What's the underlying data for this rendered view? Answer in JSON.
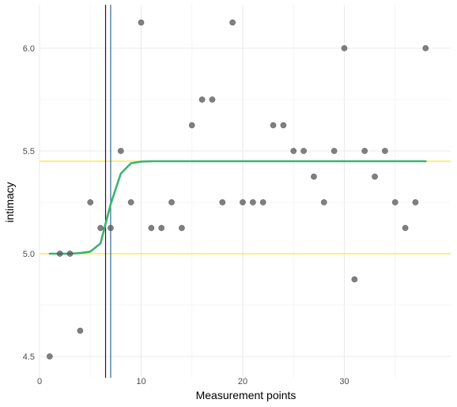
{
  "chart_data": {
    "type": "scatter",
    "xlabel": "Measurement points",
    "ylabel": "intimacy",
    "xlim": [
      0,
      38.5
    ],
    "ylim": [
      4.45,
      6.15
    ],
    "x_ticks": [
      0,
      10,
      20,
      30
    ],
    "y_ticks": [
      4.5,
      5.0,
      5.5,
      6.0
    ],
    "x_tick_labels": [
      "0",
      "10",
      "20",
      "30"
    ],
    "y_tick_labels": [
      "4.5",
      "5.0",
      "5.5",
      "6.0"
    ],
    "grid": true,
    "points": [
      {
        "x": 1,
        "y": 4.5
      },
      {
        "x": 2,
        "y": 5.0
      },
      {
        "x": 3,
        "y": 5.0
      },
      {
        "x": 4,
        "y": 4.625
      },
      {
        "x": 5,
        "y": 5.25
      },
      {
        "x": 6,
        "y": 5.125
      },
      {
        "x": 7,
        "y": 5.125
      },
      {
        "x": 8,
        "y": 5.5
      },
      {
        "x": 9,
        "y": 5.25
      },
      {
        "x": 10,
        "y": 6.125
      },
      {
        "x": 11,
        "y": 5.125
      },
      {
        "x": 12,
        "y": 5.125
      },
      {
        "x": 13,
        "y": 5.25
      },
      {
        "x": 14,
        "y": 5.125
      },
      {
        "x": 15,
        "y": 5.625
      },
      {
        "x": 16,
        "y": 5.75
      },
      {
        "x": 17,
        "y": 5.75
      },
      {
        "x": 18,
        "y": 5.25
      },
      {
        "x": 19,
        "y": 6.125
      },
      {
        "x": 20,
        "y": 5.25
      },
      {
        "x": 21,
        "y": 5.25
      },
      {
        "x": 22,
        "y": 5.25
      },
      {
        "x": 23,
        "y": 5.625
      },
      {
        "x": 24,
        "y": 5.625
      },
      {
        "x": 25,
        "y": 5.5
      },
      {
        "x": 26,
        "y": 5.5
      },
      {
        "x": 27,
        "y": 5.375
      },
      {
        "x": 28,
        "y": 5.25
      },
      {
        "x": 29,
        "y": 5.5
      },
      {
        "x": 30,
        "y": 6.0
      },
      {
        "x": 31,
        "y": 4.875
      },
      {
        "x": 32,
        "y": 5.5
      },
      {
        "x": 33,
        "y": 5.375
      },
      {
        "x": 34,
        "y": 5.5
      },
      {
        "x": 35,
        "y": 5.25
      },
      {
        "x": 36,
        "y": 5.125
      },
      {
        "x": 37,
        "y": 5.25
      },
      {
        "x": 38,
        "y": 6.0
      }
    ],
    "fitted_curve": {
      "color": "#3cb371",
      "points": [
        [
          1,
          5.0
        ],
        [
          2,
          5.0
        ],
        [
          3,
          5.0
        ],
        [
          4,
          5.003
        ],
        [
          5,
          5.01
        ],
        [
          6,
          5.05
        ],
        [
          7,
          5.24
        ],
        [
          8,
          5.39
        ],
        [
          9,
          5.44
        ],
        [
          10,
          5.448
        ],
        [
          11,
          5.45
        ],
        [
          38,
          5.45
        ]
      ]
    },
    "horizontal_lines": [
      {
        "y": 5.0,
        "color": "#fde725"
      },
      {
        "y": 5.45,
        "color": "#fde725"
      }
    ],
    "vertical_lines": [
      {
        "x": 6.5,
        "color": "#440154"
      },
      {
        "x": 7.0,
        "color": "#31688e"
      }
    ],
    "point_color": "#555555"
  }
}
